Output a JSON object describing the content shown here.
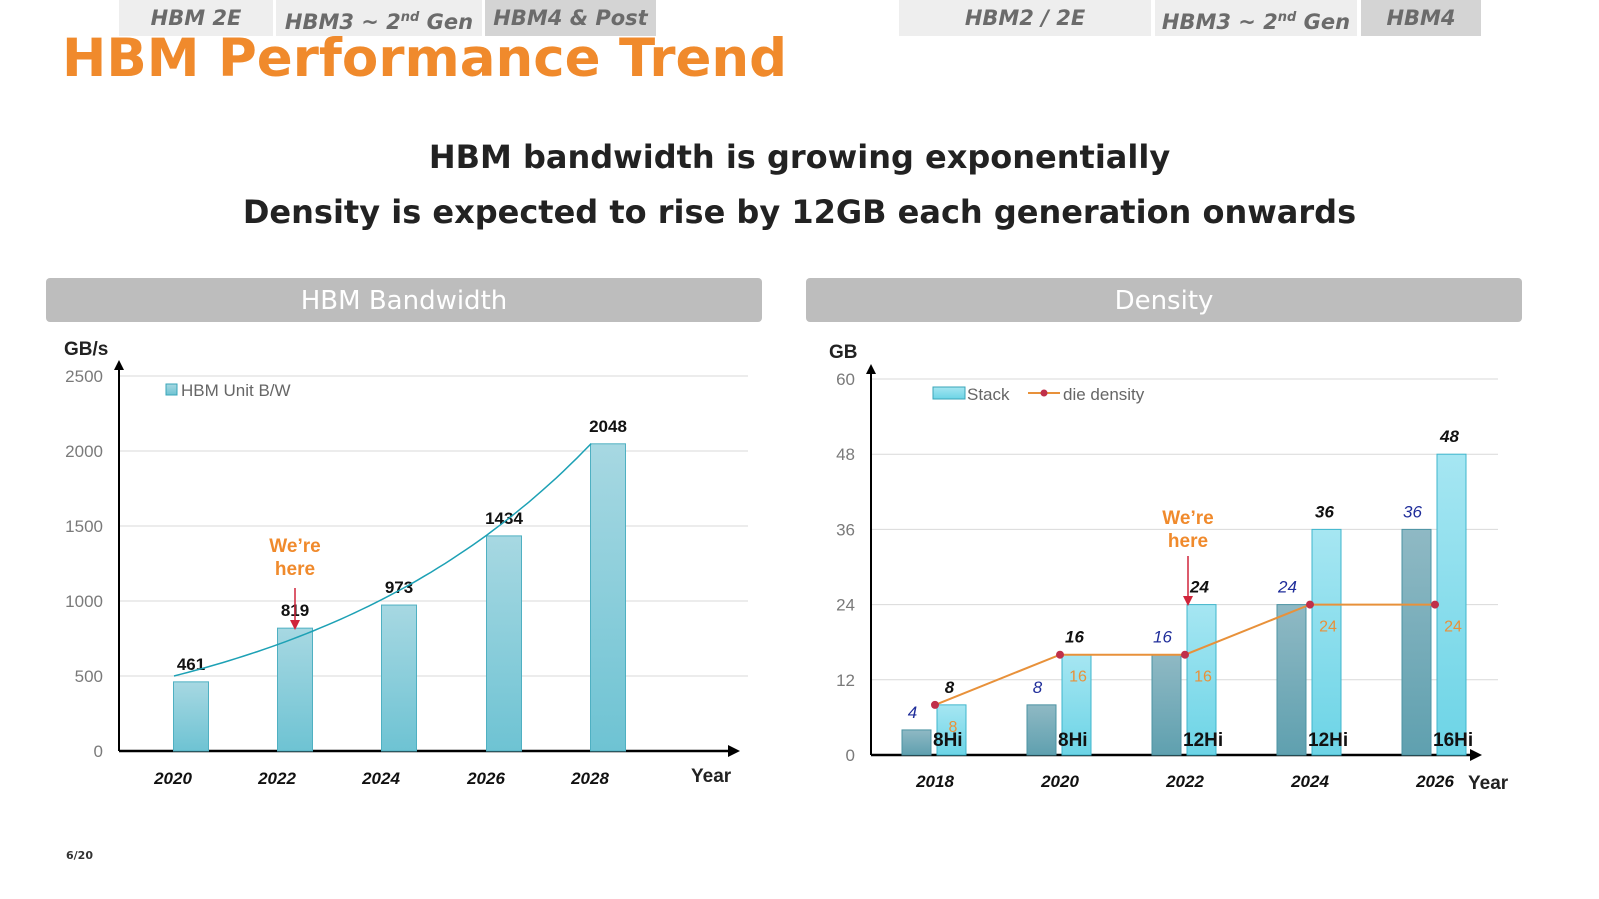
{
  "title": "HBM Performance Trend",
  "subtitle_1": "HBM bandwidth is growing exponentially",
  "subtitle_2": "Density is expected to rise by 12GB each generation onwards",
  "page_number": "6/20",
  "colors": {
    "title": "#F08A2C",
    "bar": "#7CC6D6",
    "bar_dark": "#6DAFBE",
    "bar_light": "#8FE0F0",
    "line": "#E8913A",
    "point": "#C0304A",
    "note": "#F08A2C",
    "arrow": "#D0243A"
  },
  "chart_data": [
    {
      "type": "bar",
      "title": "HBM Bandwidth",
      "ylabel": "GB/s",
      "xlabel": "Year",
      "ylim": [
        0,
        2500
      ],
      "yticks": [
        "0",
        "500",
        "1000",
        "1500",
        "2000",
        "2500"
      ],
      "categories": [
        "2020",
        "2022",
        "2024",
        "2026",
        "2028"
      ],
      "series": [
        {
          "name": "HBM Unit B/W",
          "values": [
            461,
            819,
            973,
            1434,
            2048
          ]
        }
      ],
      "data_labels": [
        "461",
        "819",
        "973",
        "1434",
        "2048"
      ],
      "trendline": true,
      "grid": true,
      "legend": "top-left",
      "annotation": {
        "line1": "We’re",
        "line2": "here",
        "category": "2022"
      },
      "generations": [
        {
          "label": "HBM 2E"
        },
        {
          "label_main": "HBM3 ~ 2",
          "label_sup": "nd",
          "label_tail": " Gen"
        },
        {
          "label": "HBM4 & Post"
        }
      ]
    },
    {
      "type": "bar",
      "title": "Density",
      "ylabel": "GB",
      "xlabel": "Year",
      "ylim": [
        0,
        60
      ],
      "yticks": [
        "0",
        "12",
        "24",
        "36",
        "48",
        "60"
      ],
      "categories": [
        "2018",
        "2020",
        "2022",
        "2024",
        "2026"
      ],
      "series": [
        {
          "name": "Stack",
          "values": [
            4,
            8,
            16,
            24,
            36
          ],
          "labels": [
            "4",
            "8",
            "16",
            "24",
            "36"
          ]
        },
        {
          "name": "Stack",
          "values": [
            8,
            16,
            24,
            36,
            48
          ],
          "labels": [
            "8",
            "16",
            "24",
            "36",
            "48"
          ]
        },
        {
          "name": "die density",
          "type": "line",
          "values": [
            8,
            16,
            16,
            24,
            24
          ],
          "labels": [
            "8",
            "16",
            "16",
            "24",
            "24"
          ]
        }
      ],
      "stack_labels": [
        "8Hi",
        "8Hi",
        "12Hi",
        "12Hi",
        "16Hi"
      ],
      "grid": true,
      "legend": "top-left",
      "annotation": {
        "line1": "We’re",
        "line2": "here",
        "category": "2022"
      },
      "generations": [
        {
          "label": "HBM2 / 2E"
        },
        {
          "label_main": "HBM3 ~ 2",
          "label_sup": "nd",
          "label_tail": " Gen"
        },
        {
          "label": "HBM4"
        }
      ]
    }
  ]
}
